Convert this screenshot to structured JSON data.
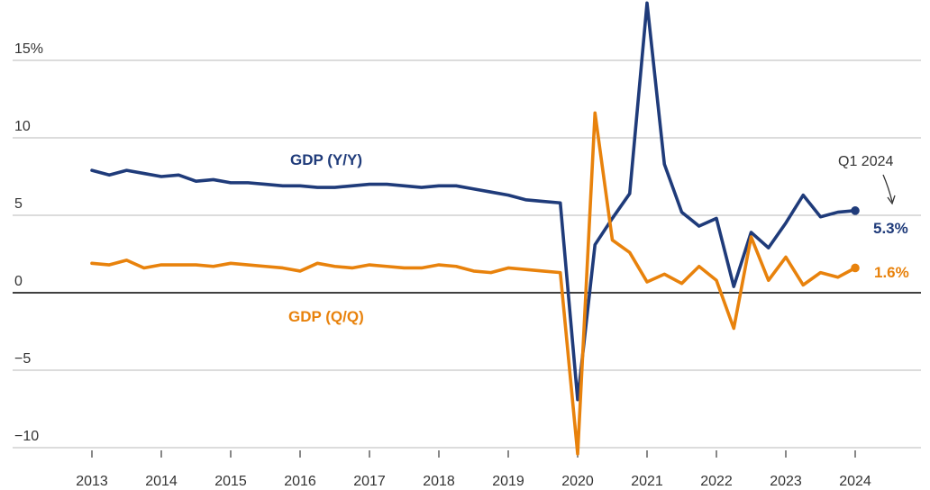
{
  "chart_data": {
    "type": "line",
    "ylim": [
      -10.7,
      19
    ],
    "yticks": [
      {
        "value": 15,
        "label": "15%"
      },
      {
        "value": 10,
        "label": "10"
      },
      {
        "value": 5,
        "label": "5"
      },
      {
        "value": 0,
        "label": "0"
      },
      {
        "value": -5,
        "label": "−5"
      },
      {
        "value": -10,
        "label": "−10"
      }
    ],
    "xticks": [
      {
        "value": 2013,
        "label": "2013"
      },
      {
        "value": 2014,
        "label": "2014"
      },
      {
        "value": 2015,
        "label": "2015"
      },
      {
        "value": 2016,
        "label": "2016"
      },
      {
        "value": 2017,
        "label": "2017"
      },
      {
        "value": 2018,
        "label": "2018"
      },
      {
        "value": 2019,
        "label": "2019"
      },
      {
        "value": 2020,
        "label": "2020"
      },
      {
        "value": 2021,
        "label": "2021"
      },
      {
        "value": 2022,
        "label": "2022"
      },
      {
        "value": 2023,
        "label": "2023"
      },
      {
        "value": 2024,
        "label": "2024"
      }
    ],
    "xlim": [
      2012.55,
      2024.9
    ],
    "grid": true,
    "series": [
      {
        "name": "GDP (Y/Y)",
        "color": "#1f3b7a",
        "end_label": "5.3%",
        "points": [
          [
            2013.0,
            7.9
          ],
          [
            2013.25,
            7.6
          ],
          [
            2013.5,
            7.9
          ],
          [
            2013.75,
            7.7
          ],
          [
            2014.0,
            7.5
          ],
          [
            2014.25,
            7.6
          ],
          [
            2014.5,
            7.2
          ],
          [
            2014.75,
            7.3
          ],
          [
            2015.0,
            7.1
          ],
          [
            2015.25,
            7.1
          ],
          [
            2015.5,
            7.0
          ],
          [
            2015.75,
            6.9
          ],
          [
            2016.0,
            6.9
          ],
          [
            2016.25,
            6.8
          ],
          [
            2016.5,
            6.8
          ],
          [
            2016.75,
            6.9
          ],
          [
            2017.0,
            7.0
          ],
          [
            2017.25,
            7.0
          ],
          [
            2017.5,
            6.9
          ],
          [
            2017.75,
            6.8
          ],
          [
            2018.0,
            6.9
          ],
          [
            2018.25,
            6.9
          ],
          [
            2018.5,
            6.7
          ],
          [
            2018.75,
            6.5
          ],
          [
            2019.0,
            6.3
          ],
          [
            2019.25,
            6.0
          ],
          [
            2019.5,
            5.9
          ],
          [
            2019.75,
            5.8
          ],
          [
            2020.0,
            -6.9
          ],
          [
            2020.25,
            3.1
          ],
          [
            2020.5,
            4.8
          ],
          [
            2020.75,
            6.4
          ],
          [
            2021.0,
            18.7
          ],
          [
            2021.25,
            8.3
          ],
          [
            2021.5,
            5.2
          ],
          [
            2021.75,
            4.3
          ],
          [
            2022.0,
            4.8
          ],
          [
            2022.25,
            0.4
          ],
          [
            2022.5,
            3.9
          ],
          [
            2022.75,
            2.9
          ],
          [
            2023.0,
            4.5
          ],
          [
            2023.25,
            6.3
          ],
          [
            2023.5,
            4.9
          ],
          [
            2023.75,
            5.2
          ],
          [
            2024.0,
            5.3
          ]
        ]
      },
      {
        "name": "GDP (Q/Q)",
        "color": "#e8820c",
        "end_label": "1.6%",
        "points": [
          [
            2013.0,
            1.9
          ],
          [
            2013.25,
            1.8
          ],
          [
            2013.5,
            2.1
          ],
          [
            2013.75,
            1.6
          ],
          [
            2014.0,
            1.8
          ],
          [
            2014.25,
            1.8
          ],
          [
            2014.5,
            1.8
          ],
          [
            2014.75,
            1.7
          ],
          [
            2015.0,
            1.9
          ],
          [
            2015.25,
            1.8
          ],
          [
            2015.5,
            1.7
          ],
          [
            2015.75,
            1.6
          ],
          [
            2016.0,
            1.4
          ],
          [
            2016.25,
            1.9
          ],
          [
            2016.5,
            1.7
          ],
          [
            2016.75,
            1.6
          ],
          [
            2017.0,
            1.8
          ],
          [
            2017.25,
            1.7
          ],
          [
            2017.5,
            1.6
          ],
          [
            2017.75,
            1.6
          ],
          [
            2018.0,
            1.8
          ],
          [
            2018.25,
            1.7
          ],
          [
            2018.5,
            1.4
          ],
          [
            2018.75,
            1.3
          ],
          [
            2019.0,
            1.6
          ],
          [
            2019.25,
            1.5
          ],
          [
            2019.5,
            1.4
          ],
          [
            2019.75,
            1.3
          ],
          [
            2020.0,
            -10.4
          ],
          [
            2020.25,
            11.6
          ],
          [
            2020.5,
            3.4
          ],
          [
            2020.75,
            2.6
          ],
          [
            2021.0,
            0.7
          ],
          [
            2021.25,
            1.2
          ],
          [
            2021.5,
            0.6
          ],
          [
            2021.75,
            1.7
          ],
          [
            2022.0,
            0.8
          ],
          [
            2022.25,
            -2.3
          ],
          [
            2022.5,
            3.6
          ],
          [
            2022.75,
            0.8
          ],
          [
            2023.0,
            2.3
          ],
          [
            2023.25,
            0.5
          ],
          [
            2023.5,
            1.3
          ],
          [
            2023.75,
            1.0
          ],
          [
            2024.0,
            1.6
          ]
        ]
      }
    ],
    "annotations": [
      {
        "text": "Q1 2024",
        "points_to": [
          2024.0,
          5.3
        ]
      }
    ]
  }
}
